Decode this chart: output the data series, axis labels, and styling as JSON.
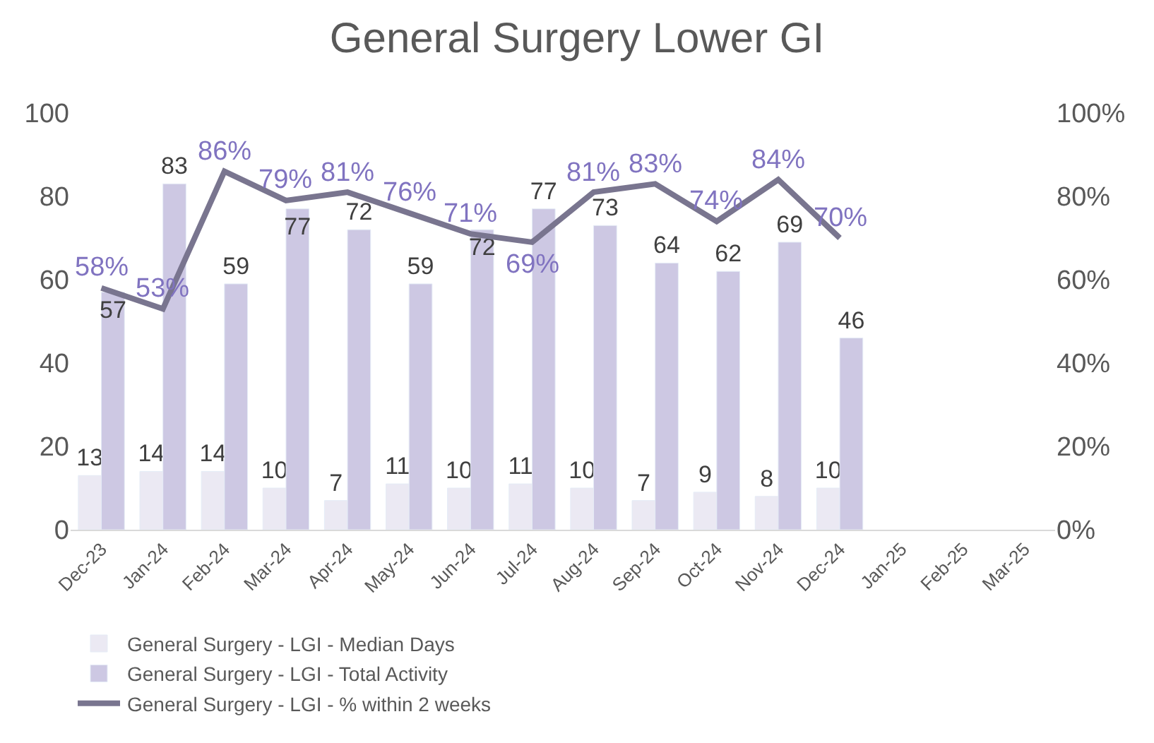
{
  "chart_data": {
    "type": "bar",
    "title": "General Surgery Lower GI",
    "categories": [
      "Dec-23",
      "Jan-24",
      "Feb-24",
      "Mar-24",
      "Apr-24",
      "May-24",
      "Jun-24",
      "Jul-24",
      "Aug-24",
      "Sep-24",
      "Oct-24",
      "Nov-24",
      "Dec-24",
      "Jan-25",
      "Feb-25",
      "Mar-25"
    ],
    "series": [
      {
        "name": "General Surgery - LGI - Median Days",
        "color": "#ebe9f3",
        "values": [
          13,
          14,
          14,
          10,
          7,
          11,
          10,
          11,
          10,
          7,
          9,
          8,
          10,
          null,
          null,
          null
        ],
        "value_labels": [
          "13",
          "14",
          "14",
          "10",
          "7",
          "11",
          "10",
          "11",
          "10",
          "7",
          "9",
          "8",
          "10",
          null,
          null,
          null
        ]
      },
      {
        "name": "General Surgery - LGI - Total Activity",
        "color": "#cdc8e3",
        "values": [
          57,
          83,
          59,
          77,
          72,
          59,
          72,
          77,
          73,
          64,
          62,
          69,
          46,
          null,
          null,
          null
        ],
        "value_labels": [
          "57",
          "83",
          "59",
          "77",
          "72",
          "59",
          "72",
          "77",
          "73",
          "64",
          "62",
          "69",
          "46",
          null,
          null,
          null
        ]
      },
      {
        "name": "General Surgery - LGI - % within 2 weeks",
        "type": "line",
        "axis": "y2",
        "color": "#79758f",
        "values": [
          58,
          53,
          86,
          79,
          81,
          76,
          71,
          69,
          81,
          83,
          74,
          84,
          70,
          null,
          null,
          null
        ],
        "value_labels": [
          "58%",
          "53%",
          "86%",
          "79%",
          "81%",
          "76%",
          "71%",
          "69%",
          "81%",
          "83%",
          "74%",
          "84%",
          "70%",
          null,
          null,
          null
        ]
      }
    ],
    "ylim": [
      0,
      100
    ],
    "yticks": [
      0,
      20,
      40,
      60,
      80,
      100
    ],
    "y2lim": [
      0,
      100
    ],
    "y2ticks": [
      {
        "value": 0,
        "label": "0%"
      },
      {
        "value": 20,
        "label": "20%"
      },
      {
        "value": 40,
        "label": "40%"
      },
      {
        "value": 60,
        "label": "60%"
      },
      {
        "value": 80,
        "label": "80%"
      },
      {
        "value": 100,
        "label": "100%"
      }
    ],
    "legend": "bottom",
    "marker": "none",
    "line_style": "solid"
  }
}
